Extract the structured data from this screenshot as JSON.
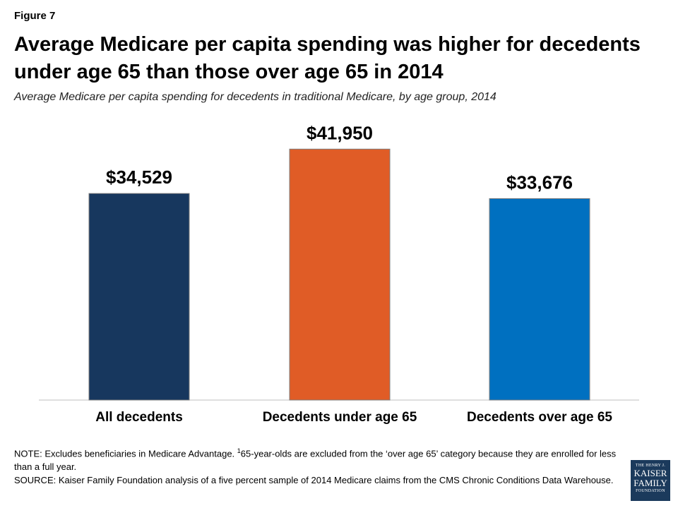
{
  "figure_label": "Figure 7",
  "title": "Average Medicare per capita spending was higher for decedents under age 65 than those over age 65 in 2014",
  "subtitle": "Average Medicare per capita spending for decedents in traditional Medicare, by age group, 2014",
  "chart_data": {
    "type": "bar",
    "categories": [
      "All decedents",
      "Decedents under age 65",
      "Decedents over age 65"
    ],
    "values": [
      34529,
      41950,
      33676
    ],
    "data_labels": [
      "$34,529",
      "$41,950",
      "$33,676"
    ],
    "colors": [
      "#17375e",
      "#e05c26",
      "#0070c0"
    ],
    "ylim": [
      0,
      48000
    ],
    "grid": false,
    "legend": "none"
  },
  "notes": {
    "note_prefix": "NOTE: Excludes beneficiaries in Medicare Advantage. ",
    "note_sup": "1",
    "note_rest": "65-year-olds are excluded from the ‘over age 65’ category because they are enrolled for less than a full year.",
    "source": "SOURCE: Kaiser Family Foundation analysis of a five percent sample of 2014 Medicare claims from the CMS Chronic Conditions Data Warehouse."
  },
  "logo": {
    "line1": "THE HENRY J.",
    "line2": "KAISER",
    "line3": "FAMILY",
    "line4": "FOUNDATION"
  }
}
